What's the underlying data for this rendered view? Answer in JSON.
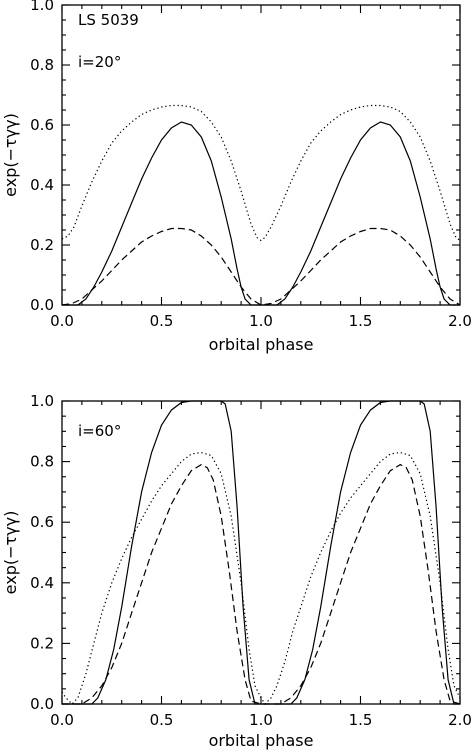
{
  "chart_data": [
    {
      "type": "line",
      "xlabel": "orbital phase",
      "ylabel": "exp(−τγγ)",
      "xlim": [
        0.0,
        2.0
      ],
      "ylim": [
        0.0,
        1.0
      ],
      "xticks": [
        0.0,
        0.5,
        1.0,
        1.5,
        2.0
      ],
      "xtick_labels": [
        "0.0",
        "0.5",
        "1.0",
        "1.5",
        "2.0"
      ],
      "yticks": [
        0.0,
        0.2,
        0.4,
        0.6,
        0.8,
        1.0
      ],
      "ytick_labels": [
        "0.0",
        "0.2",
        "0.4",
        "0.6",
        "0.8",
        "1.0"
      ],
      "annotations": [
        "LS 5039",
        "i=20°"
      ],
      "grid": false,
      "series": [
        {
          "style": "solid",
          "x": [
            0.0,
            0.08,
            0.12,
            0.16,
            0.2,
            0.25,
            0.3,
            0.35,
            0.4,
            0.45,
            0.5,
            0.55,
            0.6,
            0.65,
            0.7,
            0.75,
            0.8,
            0.85,
            0.88,
            0.9,
            0.92,
            0.95,
            1.0,
            1.06,
            1.08,
            1.12,
            1.16,
            1.2,
            1.25,
            1.3,
            1.35,
            1.4,
            1.45,
            1.5,
            1.55,
            1.6,
            1.65,
            1.7,
            1.75,
            1.8,
            1.85,
            1.88,
            1.9,
            1.92,
            1.95,
            2.0
          ],
          "y": [
            0.0,
            0.0,
            0.02,
            0.06,
            0.11,
            0.18,
            0.26,
            0.34,
            0.42,
            0.49,
            0.55,
            0.59,
            0.61,
            0.6,
            0.56,
            0.48,
            0.36,
            0.22,
            0.12,
            0.06,
            0.02,
            0.0,
            0.0,
            0.0,
            0.0,
            0.02,
            0.06,
            0.11,
            0.18,
            0.26,
            0.34,
            0.42,
            0.49,
            0.55,
            0.59,
            0.61,
            0.6,
            0.56,
            0.48,
            0.36,
            0.22,
            0.12,
            0.06,
            0.02,
            0.0,
            0.0
          ]
        },
        {
          "style": "dashed",
          "x": [
            0.0,
            0.05,
            0.1,
            0.15,
            0.2,
            0.25,
            0.3,
            0.35,
            0.4,
            0.45,
            0.5,
            0.55,
            0.6,
            0.65,
            0.7,
            0.75,
            0.8,
            0.85,
            0.9,
            0.95,
            1.0,
            1.05,
            1.1,
            1.15,
            1.2,
            1.25,
            1.3,
            1.35,
            1.4,
            1.45,
            1.5,
            1.55,
            1.6,
            1.65,
            1.7,
            1.75,
            1.8,
            1.85,
            1.9,
            1.95,
            2.0
          ],
          "y": [
            0.0,
            0.005,
            0.02,
            0.05,
            0.08,
            0.115,
            0.15,
            0.18,
            0.21,
            0.23,
            0.245,
            0.255,
            0.255,
            0.25,
            0.23,
            0.2,
            0.16,
            0.11,
            0.06,
            0.02,
            0.0,
            0.005,
            0.02,
            0.05,
            0.08,
            0.115,
            0.15,
            0.18,
            0.21,
            0.23,
            0.245,
            0.255,
            0.255,
            0.25,
            0.23,
            0.2,
            0.16,
            0.11,
            0.06,
            0.02,
            0.0
          ]
        },
        {
          "style": "dotted",
          "x": [
            0.0,
            0.03,
            0.06,
            0.1,
            0.15,
            0.2,
            0.25,
            0.3,
            0.35,
            0.4,
            0.45,
            0.5,
            0.55,
            0.6,
            0.65,
            0.7,
            0.75,
            0.8,
            0.85,
            0.9,
            0.95,
            0.98,
            1.0,
            1.02,
            1.05,
            1.1,
            1.15,
            1.2,
            1.25,
            1.3,
            1.35,
            1.4,
            1.45,
            1.5,
            1.55,
            1.6,
            1.65,
            1.7,
            1.75,
            1.8,
            1.85,
            1.9,
            1.95,
            1.98,
            2.0
          ],
          "y": [
            0.22,
            0.23,
            0.26,
            0.33,
            0.41,
            0.48,
            0.54,
            0.58,
            0.61,
            0.635,
            0.65,
            0.66,
            0.665,
            0.665,
            0.66,
            0.645,
            0.61,
            0.56,
            0.48,
            0.38,
            0.27,
            0.225,
            0.215,
            0.225,
            0.26,
            0.33,
            0.41,
            0.48,
            0.54,
            0.58,
            0.61,
            0.635,
            0.65,
            0.66,
            0.665,
            0.665,
            0.66,
            0.645,
            0.61,
            0.56,
            0.48,
            0.38,
            0.27,
            0.225,
            0.215
          ]
        }
      ]
    },
    {
      "type": "line",
      "xlabel": "orbital phase",
      "ylabel": "exp(−τγγ)",
      "xlim": [
        0.0,
        2.0
      ],
      "ylim": [
        0.0,
        1.0
      ],
      "xticks": [
        0.0,
        0.5,
        1.0,
        1.5,
        2.0
      ],
      "xtick_labels": [
        "0.0",
        "0.5",
        "1.0",
        "1.5",
        "2.0"
      ],
      "yticks": [
        0.0,
        0.2,
        0.4,
        0.6,
        0.8,
        1.0
      ],
      "ytick_labels": [
        "0.0",
        "0.2",
        "0.4",
        "0.6",
        "0.8",
        "1.0"
      ],
      "annotations": [
        "i=60°"
      ],
      "grid": false,
      "series": [
        {
          "style": "solid",
          "x": [
            0.0,
            0.15,
            0.18,
            0.22,
            0.26,
            0.3,
            0.35,
            0.4,
            0.45,
            0.5,
            0.55,
            0.6,
            0.65,
            0.7,
            0.75,
            0.8,
            0.82,
            0.85,
            0.88,
            0.91,
            0.94,
            0.97,
            1.0,
            1.15,
            1.18,
            1.22,
            1.26,
            1.3,
            1.35,
            1.4,
            1.45,
            1.5,
            1.55,
            1.6,
            1.65,
            1.7,
            1.75,
            1.8,
            1.82,
            1.85,
            1.88,
            1.91,
            1.94,
            1.97,
            2.0
          ],
          "y": [
            0.0,
            0.0,
            0.02,
            0.08,
            0.18,
            0.32,
            0.52,
            0.7,
            0.83,
            0.92,
            0.97,
            0.995,
            1.0,
            1.0,
            1.0,
            1.0,
            0.99,
            0.9,
            0.65,
            0.32,
            0.08,
            0.0,
            0.0,
            0.0,
            0.02,
            0.08,
            0.18,
            0.32,
            0.52,
            0.7,
            0.83,
            0.92,
            0.97,
            0.995,
            1.0,
            1.0,
            1.0,
            1.0,
            0.99,
            0.9,
            0.65,
            0.32,
            0.08,
            0.0,
            0.0
          ]
        },
        {
          "style": "dashed",
          "x": [
            0.0,
            0.1,
            0.15,
            0.2,
            0.25,
            0.3,
            0.35,
            0.4,
            0.45,
            0.5,
            0.55,
            0.6,
            0.65,
            0.7,
            0.73,
            0.76,
            0.8,
            0.84,
            0.88,
            0.92,
            0.95,
            1.0,
            1.1,
            1.15,
            1.2,
            1.25,
            1.3,
            1.35,
            1.4,
            1.45,
            1.5,
            1.55,
            1.6,
            1.65,
            1.7,
            1.73,
            1.76,
            1.8,
            1.84,
            1.88,
            1.92,
            1.95,
            2.0
          ],
          "y": [
            0.0,
            0.0,
            0.02,
            0.06,
            0.12,
            0.2,
            0.3,
            0.4,
            0.5,
            0.58,
            0.66,
            0.72,
            0.77,
            0.79,
            0.78,
            0.74,
            0.62,
            0.44,
            0.24,
            0.08,
            0.01,
            0.0,
            0.0,
            0.02,
            0.06,
            0.12,
            0.2,
            0.3,
            0.4,
            0.5,
            0.58,
            0.66,
            0.72,
            0.77,
            0.79,
            0.78,
            0.74,
            0.62,
            0.44,
            0.24,
            0.08,
            0.01,
            0.0
          ]
        },
        {
          "style": "dotted",
          "x": [
            0.0,
            0.02,
            0.05,
            0.08,
            0.12,
            0.16,
            0.2,
            0.25,
            0.3,
            0.35,
            0.4,
            0.45,
            0.5,
            0.55,
            0.6,
            0.65,
            0.7,
            0.75,
            0.8,
            0.85,
            0.9,
            0.94,
            0.97,
            1.0,
            1.02,
            1.05,
            1.08,
            1.12,
            1.16,
            1.2,
            1.25,
            1.3,
            1.35,
            1.4,
            1.45,
            1.5,
            1.55,
            1.6,
            1.65,
            1.7,
            1.75,
            1.8,
            1.85,
            1.9,
            1.94,
            1.97,
            2.0
          ],
          "y": [
            0.04,
            0.02,
            0.0,
            0.02,
            0.1,
            0.2,
            0.3,
            0.4,
            0.48,
            0.55,
            0.61,
            0.67,
            0.72,
            0.76,
            0.8,
            0.825,
            0.83,
            0.82,
            0.76,
            0.62,
            0.4,
            0.18,
            0.06,
            0.02,
            0.0,
            0.02,
            0.06,
            0.14,
            0.24,
            0.32,
            0.42,
            0.5,
            0.57,
            0.63,
            0.68,
            0.72,
            0.76,
            0.8,
            0.825,
            0.83,
            0.82,
            0.76,
            0.62,
            0.4,
            0.18,
            0.06,
            0.02
          ]
        }
      ]
    }
  ]
}
